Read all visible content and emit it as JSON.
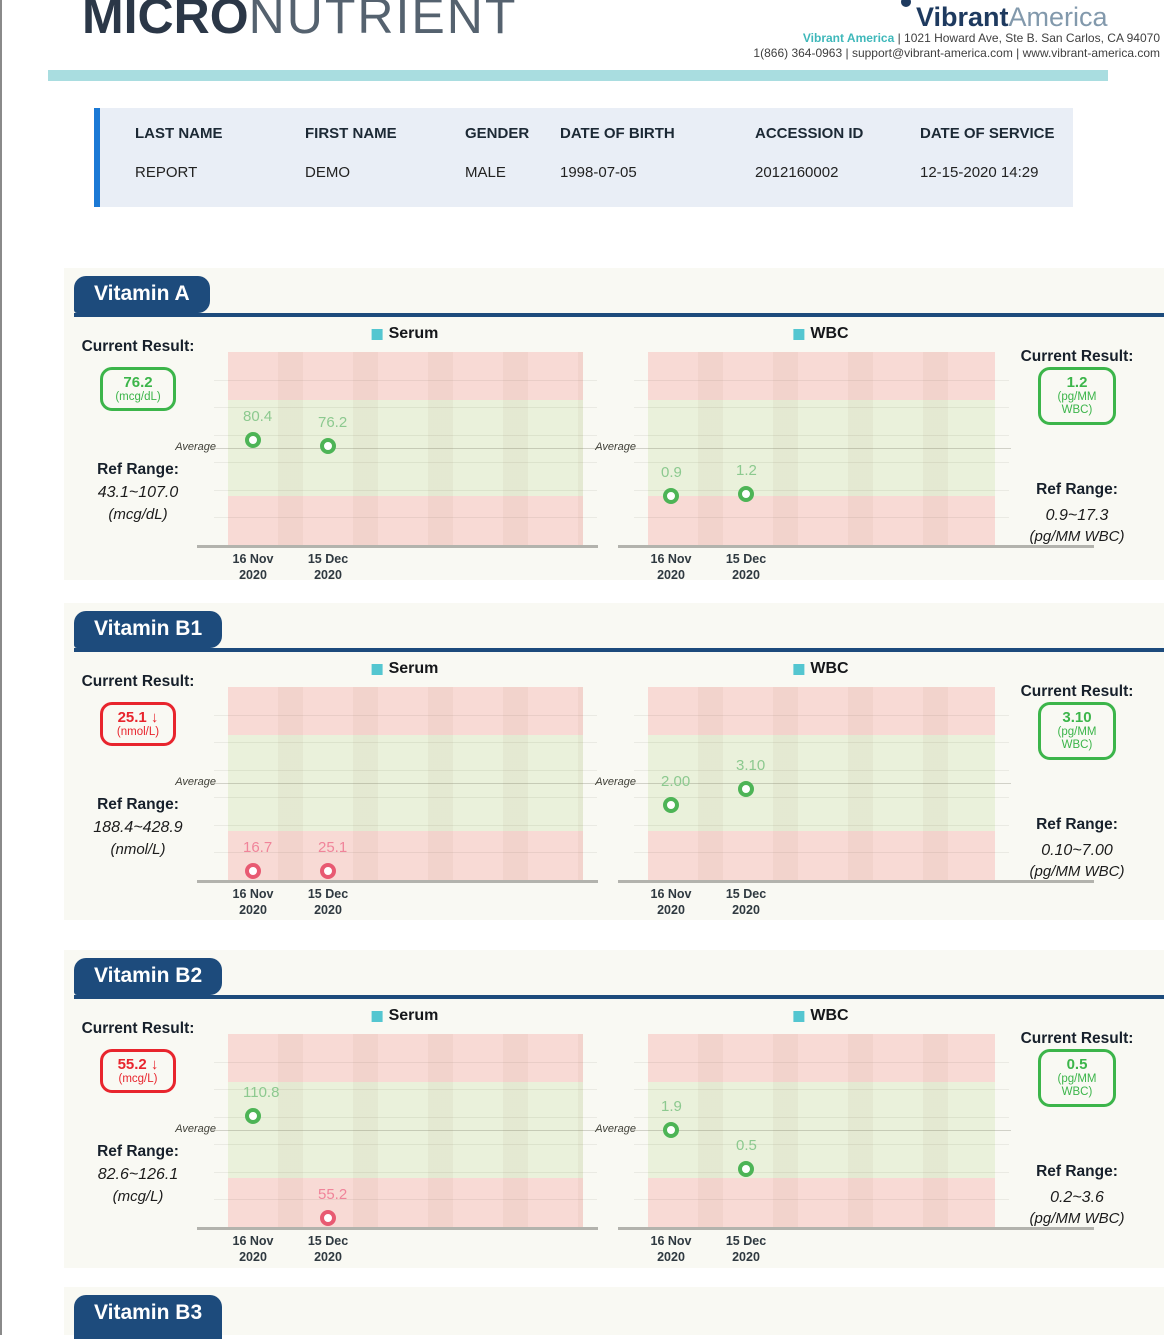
{
  "theme": {
    "navy": "#1d4b7c",
    "teal_bar": "#a9dde0",
    "legend_teal": "#54c6d0",
    "green": "#3cb54a",
    "red": "#e8252d",
    "dot_green": "#4db456",
    "dot_red": "#e85a72",
    "label_green": "#8cc98f",
    "label_red": "#f0849a",
    "patient_bar_blue": "#1b79d5"
  },
  "header": {
    "logo_bold": "MICRO",
    "logo_light": "NUTRIENT",
    "brand_bold": "Vibrant",
    "brand_light": "America",
    "address_brand": "Vibrant America",
    "address_rest": " | 1021 Howard Ave, Ste B. San Carlos, CA 94070",
    "contact_line": "1(866) 364-0963 | support@vibrant-america.com | www.vibrant-america.com"
  },
  "patient": {
    "columns": [
      {
        "label": "LAST NAME",
        "value": "REPORT"
      },
      {
        "label": "FIRST NAME",
        "value": "DEMO"
      },
      {
        "label": "GENDER",
        "value": "MALE"
      },
      {
        "label": "DATE OF BIRTH",
        "value": "1998-07-05"
      },
      {
        "label": "ACCESSION ID",
        "value": "2012160002"
      },
      {
        "label": "DATE OF SERVICE",
        "value": "12-15-2020 14:29"
      }
    ]
  },
  "sections": [
    {
      "title": "Vitamin A",
      "serum": {
        "current_label": "Current Result:",
        "current_value": "76.2",
        "current_unit": "(mcg/dL)",
        "current_status": "normal",
        "ref_label": "Ref Range:",
        "ref_range": "43.1~107.0",
        "ref_unit": "(mcg/dL)",
        "legend": "Serum",
        "average_label": "Average"
      },
      "wbc": {
        "current_label": "Current Result:",
        "current_value": "1.2",
        "current_unit": "(pg/MM WBC)",
        "current_status": "normal",
        "ref_label": "Ref Range:",
        "ref_range": "0.9~17.3",
        "ref_unit": "(pg/MM WBC)",
        "legend": "WBC",
        "average_label": "Average"
      }
    },
    {
      "title": "Vitamin B1",
      "serum": {
        "current_label": "Current Result:",
        "current_value": "25.1 ↓",
        "current_unit": "(nmol/L)",
        "current_status": "low",
        "ref_label": "Ref Range:",
        "ref_range": "188.4~428.9",
        "ref_unit": "(nmol/L)",
        "legend": "Serum",
        "average_label": "Average"
      },
      "wbc": {
        "current_label": "Current Result:",
        "current_value": "3.10",
        "current_unit": "(pg/MM WBC)",
        "current_status": "normal",
        "ref_label": "Ref Range:",
        "ref_range": "0.10~7.00",
        "ref_unit": "(pg/MM WBC)",
        "legend": "WBC",
        "average_label": "Average"
      }
    },
    {
      "title": "Vitamin B2",
      "serum": {
        "current_label": "Current Result:",
        "current_value": "55.2 ↓",
        "current_unit": "(mcg/L)",
        "current_status": "low",
        "ref_label": "Ref Range:",
        "ref_range": "82.6~126.1",
        "ref_unit": "(mcg/L)",
        "legend": "Serum",
        "average_label": "Average"
      },
      "wbc": {
        "current_label": "Current Result:",
        "current_value": "0.5",
        "current_unit": "(pg/MM WBC)",
        "current_status": "normal",
        "ref_label": "Ref Range:",
        "ref_range": "0.2~3.6",
        "ref_unit": "(pg/MM WBC)",
        "legend": "WBC",
        "average_label": "Average"
      }
    },
    {
      "title": "Vitamin B3",
      "partial": true
    }
  ],
  "chart_data": [
    {
      "type": "scatter",
      "panel": "Vitamin A",
      "series": "Serum",
      "x": [
        "16 Nov 2020",
        "15 Dec 2020"
      ],
      "values": [
        80.4,
        76.2
      ],
      "value_labels": [
        "80.4",
        "76.2"
      ],
      "ref_range": [
        43.1,
        107.0
      ],
      "unit": "mcg/dL",
      "bands": "below-range red / in-range green / above-range red",
      "legend_position": "top"
    },
    {
      "type": "scatter",
      "panel": "Vitamin A",
      "series": "WBC",
      "x": [
        "16 Nov 2020",
        "15 Dec 2020"
      ],
      "values": [
        0.9,
        1.2
      ],
      "value_labels": [
        "0.9",
        "1.2"
      ],
      "ref_range": [
        0.9,
        17.3
      ],
      "unit": "pg/MM WBC",
      "bands": "below-range red / in-range green / above-range red",
      "legend_position": "top"
    },
    {
      "type": "scatter",
      "panel": "Vitamin B1",
      "series": "Serum",
      "x": [
        "16 Nov 2020",
        "15 Dec 2020"
      ],
      "values": [
        16.7,
        25.1
      ],
      "value_labels": [
        "16.7",
        "25.1"
      ],
      "ref_range": [
        188.4,
        428.9
      ],
      "unit": "nmol/L",
      "bands": "below-range red / in-range green / above-range red",
      "legend_position": "top"
    },
    {
      "type": "scatter",
      "panel": "Vitamin B1",
      "series": "WBC",
      "x": [
        "16 Nov 2020",
        "15 Dec 2020"
      ],
      "values": [
        2.0,
        3.1
      ],
      "value_labels": [
        "2.00",
        "3.10"
      ],
      "ref_range": [
        0.1,
        7.0
      ],
      "unit": "pg/MM WBC",
      "bands": "below-range red / in-range green / above-range red",
      "legend_position": "top"
    },
    {
      "type": "scatter",
      "panel": "Vitamin B2",
      "series": "Serum",
      "x": [
        "16 Nov 2020",
        "15 Dec 2020"
      ],
      "values": [
        110.8,
        55.2
      ],
      "value_labels": [
        "110.8",
        "55.2"
      ],
      "ref_range": [
        82.6,
        126.1
      ],
      "unit": "mcg/L",
      "bands": "below-range red / in-range green / above-range red",
      "legend_position": "top"
    },
    {
      "type": "scatter",
      "panel": "Vitamin B2",
      "series": "WBC",
      "x": [
        "16 Nov 2020",
        "15 Dec 2020"
      ],
      "values": [
        1.9,
        0.5
      ],
      "value_labels": [
        "1.9",
        "0.5"
      ],
      "ref_range": [
        0.2,
        3.6
      ],
      "unit": "pg/MM WBC",
      "bands": "below-range red / in-range green / above-range red",
      "legend_position": "top"
    }
  ]
}
